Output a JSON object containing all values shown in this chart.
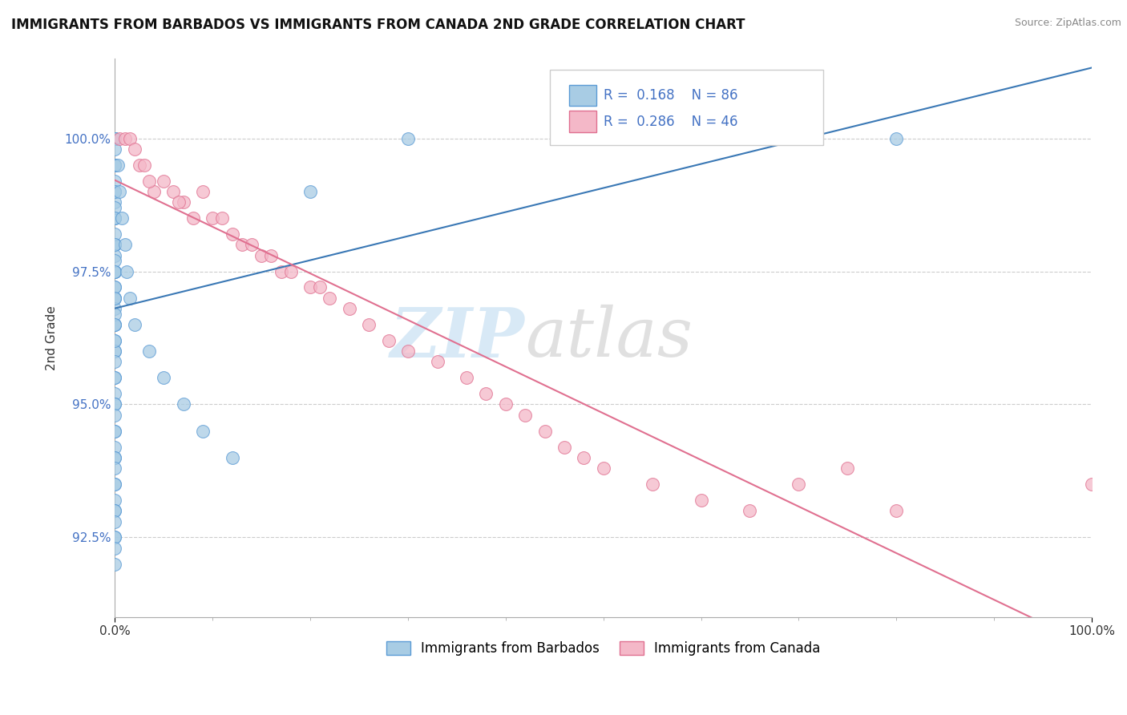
{
  "title": "IMMIGRANTS FROM BARBADOS VS IMMIGRANTS FROM CANADA 2ND GRADE CORRELATION CHART",
  "source": "Source: ZipAtlas.com",
  "ylabel": "2nd Grade",
  "xlim": [
    0,
    100
  ],
  "ylim": [
    91.0,
    101.5
  ],
  "ytick_vals": [
    92.5,
    95.0,
    97.5,
    100.0
  ],
  "legend_r1": "R = 0.168",
  "legend_n1": "N = 86",
  "legend_r2": "R = 0.286",
  "legend_n2": "N = 46",
  "legend_label1": "Immigrants from Barbados",
  "legend_label2": "Immigrants from Canada",
  "color_blue_fill": "#a8cce4",
  "color_blue_edge": "#5b9bd5",
  "color_pink_fill": "#f4b8c8",
  "color_pink_edge": "#e07090",
  "color_blue_line": "#3a78b5",
  "color_pink_line": "#e07090",
  "watermark_zip": "ZIP",
  "watermark_atlas": "atlas",
  "background_color": "#ffffff",
  "grid_color": "#cccccc",
  "ytick_color": "#4472c4",
  "blue_x": [
    0.0,
    0.0,
    0.0,
    0.0,
    0.0,
    0.0,
    0.0,
    0.0,
    0.0,
    0.0,
    0.0,
    0.0,
    0.0,
    0.0,
    0.0,
    0.0,
    0.0,
    0.0,
    0.0,
    0.0,
    0.0,
    0.0,
    0.0,
    0.0,
    0.0,
    0.0,
    0.0,
    0.0,
    0.0,
    0.0,
    0.0,
    0.0,
    0.0,
    0.0,
    0.0,
    0.0,
    0.0,
    0.0,
    0.0,
    0.0,
    0.0,
    0.0,
    0.0,
    0.0,
    0.0,
    0.0,
    0.0,
    0.0,
    0.0,
    0.0,
    0.0,
    0.0,
    0.0,
    0.0,
    0.0,
    0.0,
    0.0,
    0.0,
    0.0,
    0.0,
    0.0,
    0.0,
    0.0,
    0.0,
    0.0,
    0.0,
    0.0,
    0.0,
    0.0,
    0.0,
    0.3,
    0.5,
    0.7,
    1.0,
    1.2,
    1.5,
    2.0,
    3.5,
    5.0,
    7.0,
    9.0,
    12.0,
    20.0,
    30.0,
    55.0,
    80.0
  ],
  "blue_y": [
    100.0,
    100.0,
    100.0,
    100.0,
    100.0,
    100.0,
    100.0,
    99.5,
    99.5,
    99.5,
    99.0,
    99.0,
    98.8,
    98.5,
    98.5,
    98.0,
    98.0,
    98.0,
    97.8,
    97.5,
    97.5,
    97.5,
    97.2,
    97.0,
    97.0,
    96.8,
    96.5,
    96.5,
    96.2,
    96.0,
    96.0,
    95.8,
    95.5,
    95.5,
    95.2,
    95.0,
    95.0,
    94.8,
    94.5,
    94.5,
    94.2,
    94.0,
    94.0,
    93.8,
    93.5,
    93.5,
    93.2,
    93.0,
    93.0,
    92.8,
    92.5,
    92.5,
    92.3,
    92.0,
    100.0,
    99.8,
    99.5,
    99.2,
    99.0,
    98.7,
    98.5,
    98.2,
    98.0,
    97.7,
    97.5,
    97.2,
    97.0,
    96.7,
    96.5,
    96.2,
    99.5,
    99.0,
    98.5,
    98.0,
    97.5,
    97.0,
    96.5,
    96.0,
    95.5,
    95.0,
    94.5,
    94.0,
    99.0,
    100.0,
    100.0,
    100.0
  ],
  "pink_x": [
    0.5,
    1.0,
    1.5,
    2.0,
    2.5,
    3.0,
    4.0,
    5.0,
    6.0,
    7.0,
    8.0,
    9.0,
    10.0,
    11.0,
    12.0,
    13.0,
    14.0,
    15.0,
    17.0,
    18.0,
    20.0,
    22.0,
    24.0,
    26.0,
    28.0,
    30.0,
    33.0,
    36.0,
    38.0,
    40.0,
    42.0,
    44.0,
    46.0,
    48.0,
    3.5,
    6.5,
    16.0,
    21.0,
    50.0,
    55.0,
    60.0,
    65.0,
    70.0,
    75.0,
    80.0,
    100.0
  ],
  "pink_y": [
    100.0,
    100.0,
    100.0,
    99.8,
    99.5,
    99.5,
    99.0,
    99.2,
    99.0,
    98.8,
    98.5,
    99.0,
    98.5,
    98.5,
    98.2,
    98.0,
    98.0,
    97.8,
    97.5,
    97.5,
    97.2,
    97.0,
    96.8,
    96.5,
    96.2,
    96.0,
    95.8,
    95.5,
    95.2,
    95.0,
    94.8,
    94.5,
    94.2,
    94.0,
    99.2,
    98.8,
    97.8,
    97.2,
    93.8,
    93.5,
    93.2,
    93.0,
    93.5,
    93.8,
    93.0,
    93.5
  ]
}
